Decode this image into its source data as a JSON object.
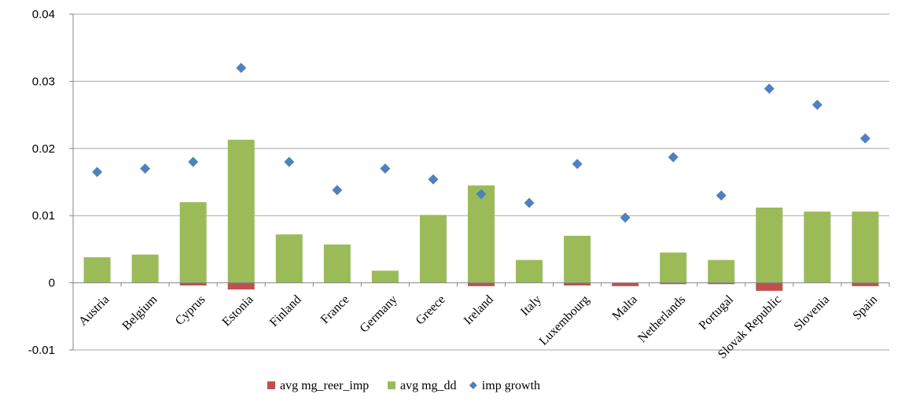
{
  "chart_data": {
    "type": "bar",
    "categories": [
      "Austria",
      "Belgium",
      "Cyprus",
      "Estonia",
      "Finland",
      "France",
      "Germany",
      "Greece",
      "Ireland",
      "Italy",
      "Luxembourg",
      "Malta",
      "Netherlands",
      "Portugal",
      "Slovak Republic",
      "Slovenia",
      "Spain"
    ],
    "series": [
      {
        "name": "avg mg_reer_imp",
        "kind": "bar",
        "color": "#c0504d",
        "values": [
          0,
          0,
          -0.0004,
          -0.001,
          0,
          0,
          0,
          0,
          -0.0005,
          0,
          -0.0004,
          -0.0005,
          -0.0002,
          -0.0002,
          -0.0012,
          0,
          -0.0005
        ]
      },
      {
        "name": "avg mg_dd",
        "kind": "bar",
        "color": "#9bbb59",
        "values": [
          0.0038,
          0.0042,
          0.012,
          0.0213,
          0.0072,
          0.0057,
          0.0018,
          0.0101,
          0.0145,
          0.0034,
          0.007,
          0,
          0.0045,
          0.0034,
          0.0112,
          0.0106,
          0.0106
        ]
      },
      {
        "name": "imp growth",
        "kind": "marker",
        "color": "#4f81bd",
        "values": [
          0.0165,
          0.017,
          0.018,
          0.032,
          0.018,
          0.0138,
          0.017,
          0.0154,
          0.0132,
          0.0119,
          0.0177,
          0.0097,
          0.0187,
          0.013,
          0.0289,
          0.0265,
          0.0215
        ]
      }
    ],
    "yticks": [
      "0.04",
      "0.03",
      "0.02",
      "0.01",
      "0",
      "-0.01"
    ],
    "ylim": [
      -0.01,
      0.04
    ],
    "grid": true,
    "legend_position": "bottom"
  }
}
